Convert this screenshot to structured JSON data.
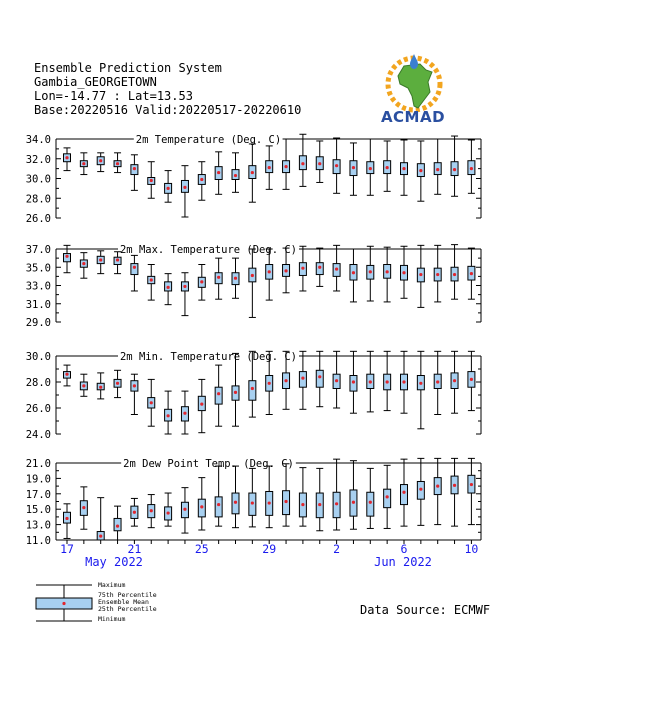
{
  "header": {
    "line1": "Ensemble Prediction System",
    "line2": "Gambia_GEORGETOWN",
    "line3": "Lon=-14.77 : Lat=13.53",
    "line4": "Base:20220516 Valid:20220517-20220610"
  },
  "logo": {
    "text": "ACMAD"
  },
  "source": "Data Source: ECMWF",
  "legend": {
    "maximum": "Maximum",
    "p75": "75th Percentile",
    "mean": "Ensemble Mean",
    "p25": "25th Percentile",
    "minimum": "Minimum"
  },
  "x_axis": {
    "tick_labels": [
      "17",
      "21",
      "25",
      "29",
      "2",
      "6",
      "10"
    ],
    "tick_days": [
      0,
      4,
      8,
      12,
      16,
      20,
      24
    ],
    "month_labels": [
      "May 2022",
      "Jun 2022"
    ]
  },
  "colors": {
    "box": "#a8d0f0",
    "mean": "#e0262e",
    "month": "#1a1aee"
  },
  "chart_data": [
    {
      "type": "boxplot",
      "title": "2m Temperature (Deg. C)",
      "ylim": [
        26.0,
        34.0
      ],
      "yticks": [
        26.0,
        28.0,
        30.0,
        32.0,
        34.0
      ],
      "ytick_labels": [
        "26.0",
        "28.0",
        "30.0",
        "32.0",
        "34.0"
      ],
      "x": [
        "2022-05-17",
        "2022-05-18",
        "2022-05-19",
        "2022-05-20",
        "2022-05-21",
        "2022-05-22",
        "2022-05-23",
        "2022-05-24",
        "2022-05-25",
        "2022-05-26",
        "2022-05-27",
        "2022-05-28",
        "2022-05-29",
        "2022-05-30",
        "2022-05-31",
        "2022-06-01",
        "2022-06-02",
        "2022-06-03",
        "2022-06-04",
        "2022-06-05",
        "2022-06-06",
        "2022-06-07",
        "2022-06-08",
        "2022-06-09",
        "2022-06-10"
      ],
      "min": [
        30.8,
        30.4,
        30.7,
        30.6,
        28.8,
        28.0,
        27.6,
        26.1,
        27.8,
        28.4,
        28.6,
        27.6,
        28.9,
        28.9,
        29.2,
        29.6,
        28.5,
        28.3,
        28.3,
        28.7,
        28.3,
        27.7,
        28.4,
        28.2,
        28.5
      ],
      "p25": [
        31.7,
        31.2,
        31.4,
        31.2,
        30.4,
        29.4,
        28.5,
        28.6,
        29.4,
        29.9,
        29.9,
        30.0,
        30.6,
        30.6,
        30.9,
        30.9,
        30.5,
        30.3,
        30.5,
        30.5,
        30.4,
        30.2,
        30.4,
        30.3,
        30.4
      ],
      "mean": [
        32.1,
        31.5,
        31.8,
        31.5,
        31.0,
        29.8,
        29.0,
        29.1,
        29.9,
        30.6,
        30.3,
        30.6,
        31.1,
        31.2,
        31.5,
        31.5,
        31.3,
        31.1,
        31.0,
        31.1,
        31.0,
        30.8,
        30.9,
        30.9,
        31.0
      ],
      "p75": [
        32.5,
        31.8,
        32.2,
        31.8,
        31.4,
        30.1,
        29.5,
        29.8,
        30.4,
        31.2,
        30.9,
        31.3,
        31.8,
        31.8,
        32.3,
        32.2,
        31.9,
        31.8,
        31.7,
        31.8,
        31.6,
        31.5,
        31.6,
        31.7,
        31.8
      ],
      "max": [
        33.1,
        32.6,
        32.6,
        32.6,
        32.4,
        31.7,
        30.8,
        31.3,
        31.7,
        32.7,
        32.6,
        33.5,
        33.3,
        34.0,
        34.5,
        33.8,
        34.1,
        33.6,
        34.0,
        33.8,
        33.9,
        33.8,
        34.0,
        34.3,
        33.9
      ]
    },
    {
      "type": "boxplot",
      "title": "2m Max. Temperature (Deg. C)",
      "ylim": [
        29.0,
        37.0
      ],
      "yticks": [
        29.0,
        31.0,
        33.0,
        35.0,
        37.0
      ],
      "ytick_labels": [
        "29.0",
        "31.0",
        "33.0",
        "35.0",
        "37.0"
      ],
      "x": [
        "2022-05-17",
        "2022-05-18",
        "2022-05-19",
        "2022-05-20",
        "2022-05-21",
        "2022-05-22",
        "2022-05-23",
        "2022-05-24",
        "2022-05-25",
        "2022-05-26",
        "2022-05-27",
        "2022-05-28",
        "2022-05-29",
        "2022-05-30",
        "2022-05-31",
        "2022-06-01",
        "2022-06-02",
        "2022-06-03",
        "2022-06-04",
        "2022-06-05",
        "2022-06-06",
        "2022-06-07",
        "2022-06-08",
        "2022-06-09",
        "2022-06-10"
      ],
      "min": [
        34.4,
        33.8,
        34.3,
        34.3,
        32.4,
        31.4,
        30.9,
        29.7,
        31.4,
        31.5,
        31.6,
        29.5,
        31.4,
        32.2,
        32.4,
        32.9,
        32.4,
        31.2,
        31.3,
        31.2,
        31.6,
        30.6,
        31.2,
        31.5,
        31.5
      ],
      "p25": [
        35.6,
        35.0,
        35.4,
        35.3,
        34.2,
        33.2,
        32.4,
        32.4,
        32.8,
        33.2,
        33.1,
        33.4,
        33.7,
        34.0,
        34.1,
        34.2,
        34.0,
        33.6,
        33.7,
        33.8,
        33.6,
        33.4,
        33.5,
        33.5,
        33.6
      ],
      "mean": [
        36.2,
        35.4,
        35.8,
        35.8,
        35.0,
        33.6,
        32.8,
        32.9,
        33.4,
        33.9,
        33.8,
        34.1,
        34.5,
        34.6,
        34.9,
        35.0,
        34.8,
        34.4,
        34.5,
        34.5,
        34.4,
        34.2,
        34.2,
        34.2,
        34.3
      ],
      "p75": [
        36.5,
        35.8,
        36.2,
        36.1,
        35.4,
        34.0,
        33.4,
        33.4,
        33.9,
        34.4,
        34.4,
        34.9,
        35.3,
        35.3,
        35.5,
        35.5,
        35.4,
        35.3,
        35.2,
        35.3,
        35.2,
        34.9,
        34.9,
        35.0,
        35.1
      ],
      "max": [
        37.4,
        36.6,
        36.8,
        36.7,
        36.3,
        35.3,
        34.3,
        34.4,
        35.3,
        36.0,
        36.0,
        37.0,
        37.0,
        37.1,
        37.3,
        37.1,
        37.4,
        37.0,
        37.3,
        37.2,
        37.3,
        37.4,
        37.4,
        37.6,
        37.1
      ]
    },
    {
      "type": "boxplot",
      "title": "2m Min. Temperature (Deg. C)",
      "ylim": [
        24.0,
        30.0
      ],
      "yticks": [
        24.0,
        26.0,
        28.0,
        30.0
      ],
      "ytick_labels": [
        "24.0",
        "26.0",
        "28.0",
        "30.0"
      ],
      "x": [
        "2022-05-17",
        "2022-05-18",
        "2022-05-19",
        "2022-05-20",
        "2022-05-21",
        "2022-05-22",
        "2022-05-23",
        "2022-05-24",
        "2022-05-25",
        "2022-05-26",
        "2022-05-27",
        "2022-05-28",
        "2022-05-29",
        "2022-05-30",
        "2022-05-31",
        "2022-06-01",
        "2022-06-02",
        "2022-06-03",
        "2022-06-04",
        "2022-06-05",
        "2022-06-06",
        "2022-06-07",
        "2022-06-08",
        "2022-06-09",
        "2022-06-10"
      ],
      "min": [
        27.7,
        26.9,
        26.7,
        26.8,
        25.5,
        24.6,
        23.8,
        23.5,
        24.1,
        24.6,
        24.6,
        25.3,
        25.5,
        25.9,
        25.9,
        26.1,
        26.0,
        25.6,
        25.7,
        25.8,
        25.6,
        24.4,
        25.5,
        25.6,
        25.8
      ],
      "p25": [
        28.3,
        27.4,
        27.4,
        27.6,
        27.3,
        26.0,
        25.0,
        25.0,
        25.8,
        26.3,
        26.6,
        26.6,
        27.3,
        27.5,
        27.6,
        27.6,
        27.5,
        27.3,
        27.5,
        27.4,
        27.4,
        27.4,
        27.5,
        27.5,
        27.6
      ],
      "mean": [
        28.6,
        27.7,
        27.6,
        27.9,
        27.7,
        26.4,
        25.4,
        25.6,
        26.3,
        27.1,
        27.2,
        27.5,
        27.9,
        28.1,
        28.3,
        28.4,
        28.1,
        28.0,
        28.0,
        28.0,
        28.0,
        27.9,
        28.0,
        28.1,
        28.2
      ],
      "p75": [
        28.8,
        28.0,
        27.9,
        28.2,
        28.1,
        26.8,
        25.9,
        26.1,
        26.9,
        27.6,
        27.7,
        28.1,
        28.5,
        28.7,
        28.8,
        28.9,
        28.6,
        28.5,
        28.6,
        28.6,
        28.6,
        28.5,
        28.6,
        28.7,
        28.8
      ],
      "max": [
        29.3,
        28.6,
        28.7,
        28.9,
        28.6,
        28.2,
        27.3,
        27.3,
        28.2,
        29.3,
        30.2,
        30.4,
        31.0,
        30.9,
        31.0,
        30.8,
        30.6,
        30.6,
        30.8,
        30.8,
        30.5,
        31.0,
        31.1,
        30.9,
        30.7
      ]
    },
    {
      "type": "boxplot",
      "title": "2m Dew Point Temp. (Deg. C)",
      "ylim": [
        11.0,
        21.0
      ],
      "yticks": [
        11.0,
        13.0,
        15.0,
        17.0,
        19.0,
        21.0
      ],
      "ytick_labels": [
        "11.0",
        "13.0",
        "15.0",
        "17.0",
        "19.0",
        "21.0"
      ],
      "x": [
        "2022-05-17",
        "2022-05-18",
        "2022-05-19",
        "2022-05-20",
        "2022-05-21",
        "2022-05-22",
        "2022-05-23",
        "2022-05-24",
        "2022-05-25",
        "2022-05-26",
        "2022-05-27",
        "2022-05-28",
        "2022-05-29",
        "2022-05-30",
        "2022-05-31",
        "2022-06-01",
        "2022-06-02",
        "2022-06-03",
        "2022-06-04",
        "2022-06-05",
        "2022-06-06",
        "2022-06-07",
        "2022-06-08",
        "2022-06-09",
        "2022-06-10"
      ],
      "min": [
        11.2,
        12.4,
        11.0,
        11.0,
        12.8,
        12.6,
        12.8,
        11.9,
        12.3,
        12.8,
        12.6,
        12.7,
        12.6,
        12.8,
        12.8,
        12.2,
        12.3,
        12.4,
        12.5,
        12.5,
        12.8,
        12.9,
        13.0,
        12.8,
        13.0
      ],
      "p25": [
        13.2,
        14.2,
        11.0,
        12.2,
        13.8,
        13.9,
        13.6,
        13.9,
        14.0,
        14.0,
        14.4,
        14.2,
        14.2,
        14.3,
        14.0,
        13.9,
        13.9,
        14.1,
        14.1,
        15.2,
        15.6,
        16.3,
        16.9,
        17.0,
        17.1
      ],
      "mean": [
        13.8,
        15.2,
        11.5,
        12.8,
        14.6,
        14.8,
        14.5,
        15.0,
        15.3,
        15.6,
        15.9,
        15.8,
        15.8,
        16.0,
        15.6,
        15.6,
        15.7,
        15.9,
        15.9,
        16.6,
        17.2,
        17.6,
        18.0,
        18.1,
        18.2
      ],
      "p75": [
        14.6,
        16.1,
        12.1,
        13.8,
        15.4,
        15.6,
        15.3,
        15.9,
        16.3,
        16.6,
        17.1,
        17.1,
        17.3,
        17.4,
        17.1,
        17.1,
        17.2,
        17.5,
        17.2,
        17.6,
        18.2,
        18.6,
        19.1,
        19.3,
        19.4
      ],
      "max": [
        15.7,
        17.9,
        16.5,
        15.4,
        16.4,
        16.9,
        17.1,
        17.8,
        19.1,
        20.6,
        20.6,
        20.3,
        20.6,
        20.9,
        20.4,
        20.3,
        21.5,
        21.3,
        20.3,
        20.7,
        21.5,
        21.9,
        22.1,
        21.9,
        22.0
      ]
    }
  ]
}
